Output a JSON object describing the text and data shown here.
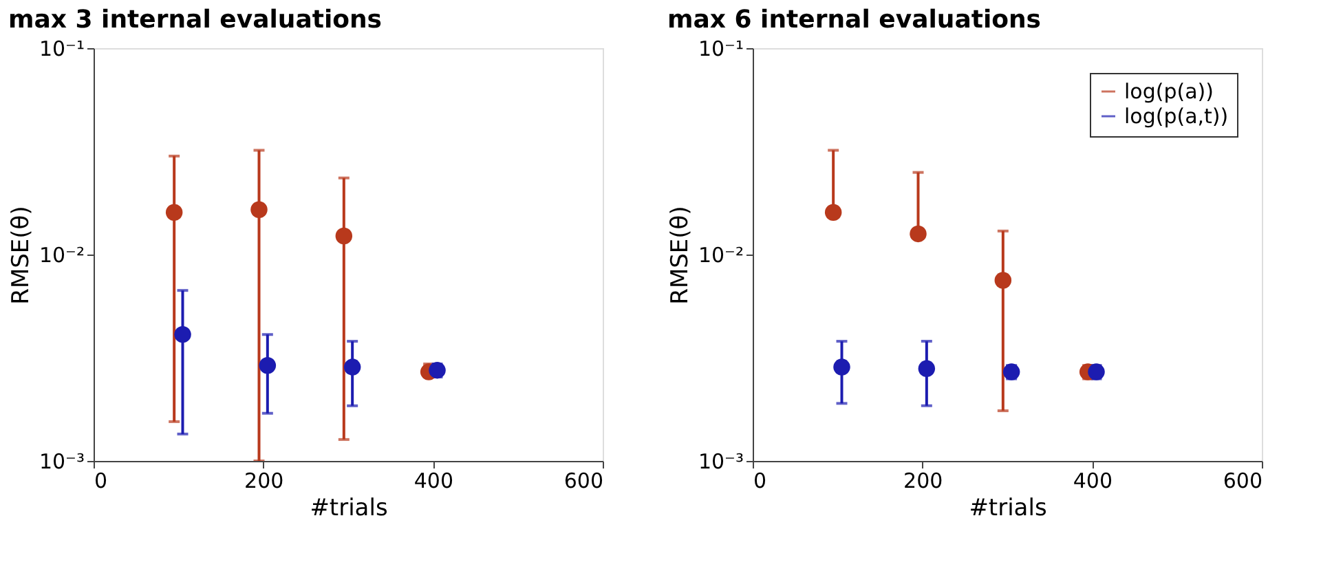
{
  "chart_data": [
    {
      "type": "scatter",
      "title": "max 3 internal evaluations",
      "xlabel": "#trials",
      "ylabel": "RMSE(θ)",
      "log": "y",
      "marker": "circle",
      "xlim": [
        0,
        600
      ],
      "xticks": [
        0,
        200,
        400,
        600
      ],
      "ylim": [
        0.001,
        0.1
      ],
      "yticks": [
        {
          "value": 0.001,
          "label": "10⁻³"
        },
        {
          "value": 0.01,
          "label": "10⁻²"
        },
        {
          "value": 0.1,
          "label": "10⁻¹"
        }
      ],
      "series": [
        {
          "color": "#b8391c",
          "x": [
            95,
            195,
            295,
            395
          ],
          "values": [
            0.016,
            0.0165,
            0.0123,
            0.0027
          ],
          "errors": [
            [
              0.00155,
              0.03
            ],
            [
              0.001,
              0.032
            ],
            [
              0.00127,
              0.0235
            ],
            [
              0.00255,
              0.00295
            ]
          ]
        },
        {
          "color": "#1c1cb0",
          "x": [
            105,
            205,
            305,
            405
          ],
          "values": [
            0.0041,
            0.0029,
            0.00285,
            0.00275
          ],
          "errors": [
            [
              0.00135,
              0.0067
            ],
            [
              0.0017,
              0.0041
            ],
            [
              0.00185,
              0.0038
            ],
            [
              0.00255,
              0.00295
            ]
          ]
        }
      ]
    },
    {
      "type": "scatter",
      "title": "max 6 internal evaluations",
      "xlabel": "#trials",
      "ylabel": "RMSE(θ)",
      "log": "y",
      "marker": "circle",
      "legend": "top right",
      "xlim": [
        0,
        600
      ],
      "xticks": [
        0,
        200,
        400,
        600
      ],
      "ylim": [
        0.001,
        0.1
      ],
      "yticks": [
        {
          "value": 0.001,
          "label": "10⁻³"
        },
        {
          "value": 0.01,
          "label": "10⁻²"
        },
        {
          "value": 0.1,
          "label": "10⁻¹"
        }
      ],
      "series": [
        {
          "name": "log(p(a))",
          "color": "#b8391c",
          "x": [
            95,
            195,
            295,
            395
          ],
          "values": [
            0.016,
            0.0126,
            0.0075,
            0.0027
          ],
          "errors": [
            [
              0.016,
              0.032
            ],
            [
              0.0126,
              0.025
            ],
            [
              0.00175,
              0.013
            ],
            [
              0.0025,
              0.0029
            ]
          ]
        },
        {
          "name": "log(p(a,t))",
          "color": "#1c1cb0",
          "x": [
            105,
            205,
            305,
            405
          ],
          "values": [
            0.00285,
            0.0028,
            0.0027,
            0.0027
          ],
          "errors": [
            [
              0.0019,
              0.0038
            ],
            [
              0.00185,
              0.0038
            ],
            [
              0.0025,
              0.0029
            ],
            [
              0.0025,
              0.0029
            ]
          ]
        }
      ]
    }
  ]
}
